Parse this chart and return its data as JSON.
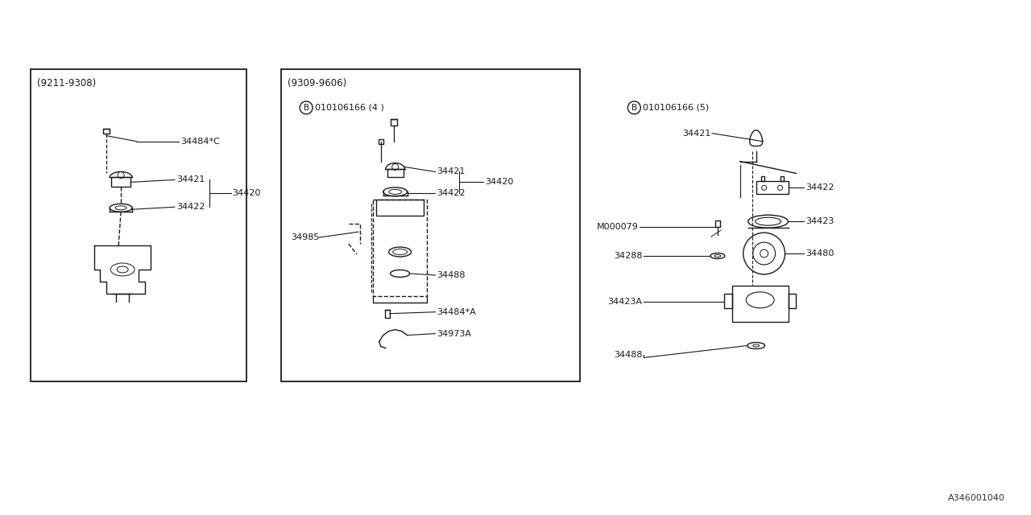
{
  "bg_color": "#ffffff",
  "line_color": "#1a1a1a",
  "figsize": [
    12.8,
    6.4
  ],
  "dpi": 100,
  "footer_text": "A346001040",
  "panel1_label": "(9211-9308)",
  "panel2_label": "(9309-9606)",
  "panel2_badge_text": "010106166 (4 )",
  "panel3_badge_text": "010106166 (5)"
}
